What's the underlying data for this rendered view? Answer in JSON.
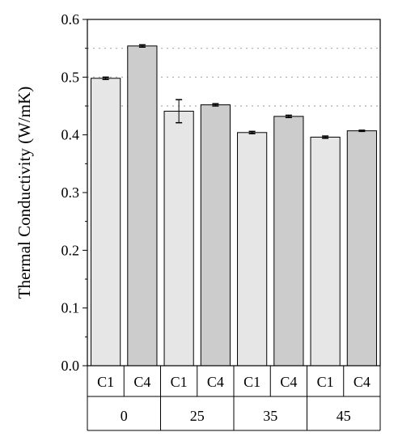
{
  "chart_data": {
    "type": "bar",
    "title": "",
    "xlabel": "",
    "ylabel": "Thermal Conductivity (W/mK)",
    "ylim": [
      0,
      0.6
    ],
    "yticks": [
      "0.0",
      "0.1",
      "0.2",
      "0.3",
      "0.4",
      "0.5",
      "0.6"
    ],
    "grid": "dotted horizontal lines in upper plot region",
    "groups": [
      {
        "label": "0",
        "bars": [
          {
            "label": "C1",
            "value": 0.498,
            "error": 0.002
          },
          {
            "label": "C4",
            "value": 0.554,
            "error": 0.002
          }
        ]
      },
      {
        "label": "25",
        "bars": [
          {
            "label": "C1",
            "value": 0.441,
            "error": 0.02
          },
          {
            "label": "C4",
            "value": 0.452,
            "error": 0.002
          }
        ]
      },
      {
        "label": "35",
        "bars": [
          {
            "label": "C1",
            "value": 0.404,
            "error": 0.002
          },
          {
            "label": "C4",
            "value": 0.432,
            "error": 0.002
          }
        ]
      },
      {
        "label": "45",
        "bars": [
          {
            "label": "C1",
            "value": 0.396,
            "error": 0.002
          },
          {
            "label": "C4",
            "value": 0.407,
            "error": 0.001
          }
        ]
      }
    ],
    "colors": {
      "C1": "#e6e6e6",
      "C4": "#cccccc",
      "stroke": "#000000",
      "grid": "#aaaaaa"
    }
  }
}
